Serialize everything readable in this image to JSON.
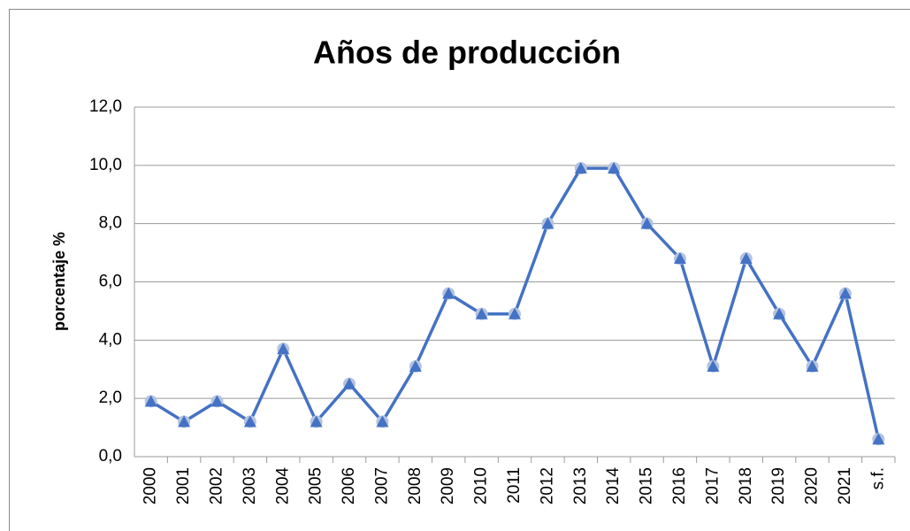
{
  "chart_data": {
    "type": "line",
    "title": "Años de producción",
    "y_label": "porcentaje %",
    "categories": [
      "2000",
      "2001",
      "2002",
      "2003",
      "2004",
      "2005",
      "2006",
      "2007",
      "2008",
      "2009",
      "2010",
      "2011",
      "2012",
      "2013",
      "2014",
      "2015",
      "2016",
      "2017",
      "2018",
      "2019",
      "2020",
      "2021",
      "s.f."
    ],
    "series": [
      {
        "name": "porcentaje %",
        "color": "#4472c4",
        "values": [
          1.9,
          1.2,
          1.9,
          1.2,
          3.7,
          1.2,
          2.5,
          1.2,
          3.1,
          5.6,
          4.9,
          4.9,
          8.0,
          9.9,
          9.9,
          8.0,
          6.8,
          3.1,
          6.8,
          4.9,
          3.1,
          5.6,
          0.6
        ]
      }
    ],
    "ylim": [
      0,
      12
    ],
    "yticks": [
      {
        "value": 0,
        "label": "0,0"
      },
      {
        "value": 2,
        "label": "2,0"
      },
      {
        "value": 4,
        "label": "4,0"
      },
      {
        "value": 6,
        "label": "6,0"
      },
      {
        "value": 8,
        "label": "8,0"
      },
      {
        "value": 10,
        "label": "10,0"
      },
      {
        "value": 12,
        "label": "12,0"
      }
    ],
    "grid": true
  }
}
